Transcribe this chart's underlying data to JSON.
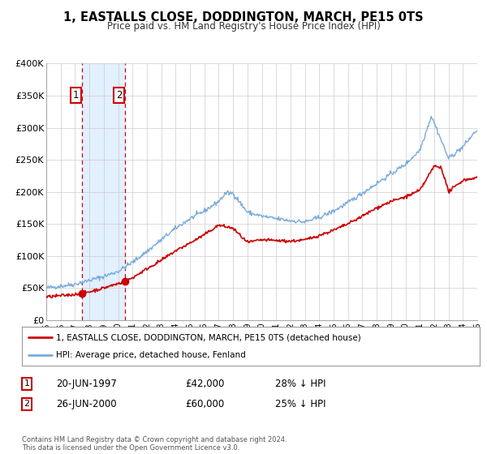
{
  "title": "1, EASTALLS CLOSE, DODDINGTON, MARCH, PE15 0TS",
  "subtitle": "Price paid vs. HM Land Registry's House Price Index (HPI)",
  "legend_label_red": "1, EASTALLS CLOSE, DODDINGTON, MARCH, PE15 0TS (detached house)",
  "legend_label_blue": "HPI: Average price, detached house, Fenland",
  "transaction1_date": "20-JUN-1997",
  "transaction1_price": "£42,000",
  "transaction1_hpi": "28% ↓ HPI",
  "transaction2_date": "26-JUN-2000",
  "transaction2_price": "£60,000",
  "transaction2_hpi": "25% ↓ HPI",
  "footer": "Contains HM Land Registry data © Crown copyright and database right 2024.\nThis data is licensed under the Open Government Licence v3.0.",
  "ylim": [
    0,
    400000
  ],
  "yticks": [
    0,
    50000,
    100000,
    150000,
    200000,
    250000,
    300000,
    350000,
    400000
  ],
  "ytick_labels": [
    "£0",
    "£50K",
    "£100K",
    "£150K",
    "£200K",
    "£250K",
    "£300K",
    "£350K",
    "£400K"
  ],
  "background_color": "#ffffff",
  "grid_color": "#cccccc",
  "red_color": "#cc0000",
  "blue_color": "#7aabdb",
  "shading_color": "#ddeeff",
  "vline_color": "#cc0000",
  "point1_x_year": 1997.47,
  "point1_y": 42000,
  "point2_x_year": 2000.49,
  "point2_y": 60000,
  "xlim": [
    1995,
    2025
  ],
  "xticks": [
    1995,
    1996,
    1997,
    1998,
    1999,
    2000,
    2001,
    2002,
    2003,
    2004,
    2005,
    2006,
    2007,
    2008,
    2009,
    2010,
    2011,
    2012,
    2013,
    2014,
    2015,
    2016,
    2017,
    2018,
    2019,
    2020,
    2021,
    2022,
    2023,
    2024,
    2025
  ]
}
